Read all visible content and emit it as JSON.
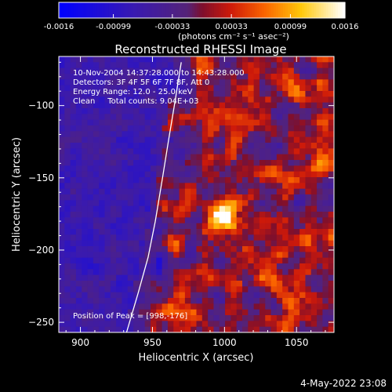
{
  "colorbar": {
    "tick_labels": [
      "-0.0016",
      "-0.00099",
      "-0.00033",
      "0.00033",
      "0.00099",
      "0.0016"
    ],
    "range": [
      -0.0016,
      0.0016
    ],
    "units": "(photons cm⁻² s⁻¹ asec⁻²)"
  },
  "chart_data": {
    "type": "heatmap",
    "title": "Reconstructed RHESSI Image",
    "xlabel": "Heliocentric X (arcsec)",
    "ylabel": "Heliocentric Y (arcsec)",
    "xlim": [
      885,
      1076
    ],
    "ylim": [
      -257,
      -66
    ],
    "x_ticks": [
      900,
      950,
      1000,
      1050
    ],
    "y_ticks": [
      -100,
      -150,
      -200,
      -250
    ],
    "annotations": [
      "10-Nov-2004 14:37:28.000 to 14:43:28.000",
      "Detectors: 3F 4F 5F 6F 7F 8F, Att 0",
      "Energy Range: 12.0 - 25.0 keV",
      "Clean     Total counts: 9.04E+03"
    ],
    "peak_label": "Position of Peak = [998,-176]",
    "peak": [
      998,
      -176
    ],
    "limb_curve": [
      [
        932,
        -257
      ],
      [
        940,
        -230
      ],
      [
        947,
        -205
      ],
      [
        952,
        -180
      ],
      [
        957,
        -150
      ],
      [
        961,
        -125
      ],
      [
        966,
        -95
      ],
      [
        970,
        -70
      ]
    ],
    "colors": {
      "background": "#000000",
      "axes": "#ffffff",
      "limb": "#ffffff"
    }
  },
  "footer": {
    "timestamp": "4-May-2022 23:08"
  }
}
